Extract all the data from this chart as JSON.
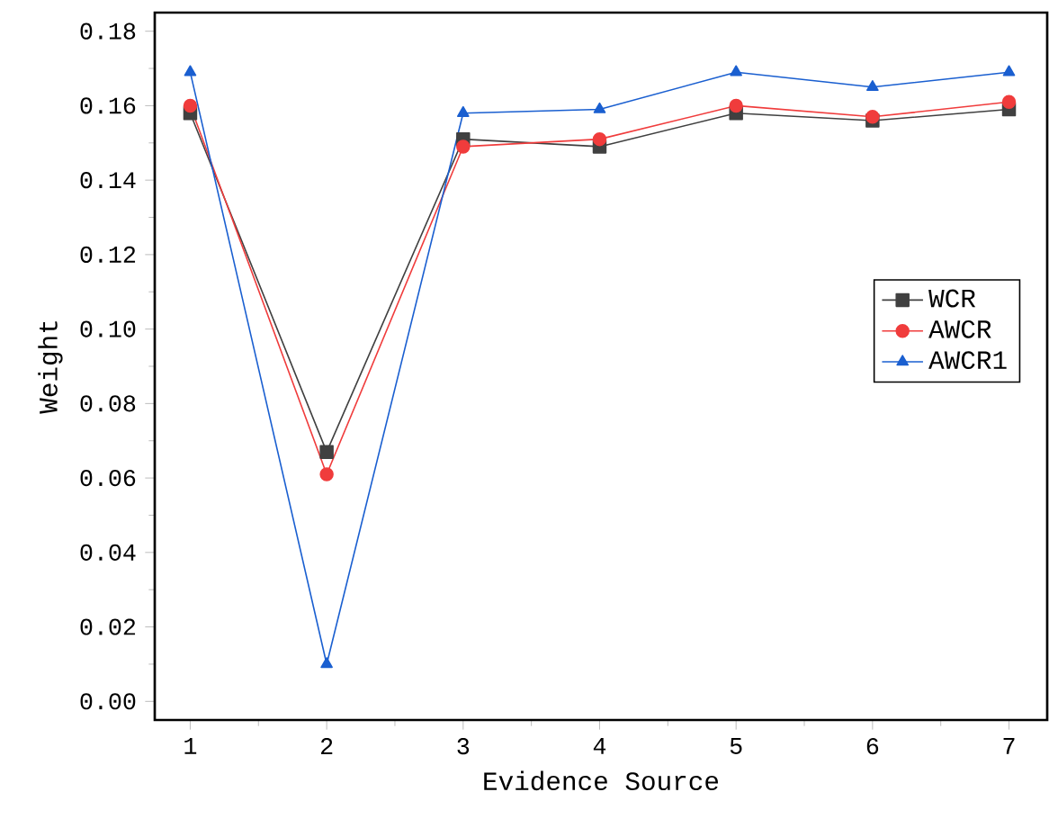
{
  "chart_data": {
    "type": "line",
    "xlabel": "Evidence Source",
    "ylabel": "Weight",
    "x": [
      1,
      2,
      3,
      4,
      5,
      6,
      7
    ],
    "series": [
      {
        "name": "WCR",
        "color": "#404040",
        "marker": "square",
        "values": [
          0.158,
          0.067,
          0.151,
          0.149,
          0.158,
          0.156,
          0.159
        ]
      },
      {
        "name": "AWCR",
        "color": "#f03c3c",
        "marker": "circle",
        "values": [
          0.16,
          0.061,
          0.149,
          0.151,
          0.16,
          0.157,
          0.161
        ]
      },
      {
        "name": "AWCR1",
        "color": "#1a5fd0",
        "marker": "triangle",
        "values": [
          0.169,
          0.01,
          0.158,
          0.159,
          0.169,
          0.165,
          0.169
        ]
      }
    ],
    "xlim": [
      0.74,
      7.28
    ],
    "ylim": [
      -0.005,
      0.185
    ],
    "xticks": [
      1,
      2,
      3,
      4,
      5,
      6,
      7
    ],
    "yticks": [
      {
        "value": 0,
        "label": "0.00"
      },
      {
        "value": 0.02,
        "label": "0.02"
      },
      {
        "value": 0.04,
        "label": "0.04"
      },
      {
        "value": 0.06,
        "label": "0.06"
      },
      {
        "value": 0.08,
        "label": "0.08"
      },
      {
        "value": 0.1,
        "label": "0.10"
      },
      {
        "value": 0.12,
        "label": "0.12"
      },
      {
        "value": 0.14,
        "label": "0.14"
      },
      {
        "value": 0.16,
        "label": "0.16"
      },
      {
        "value": 0.18,
        "label": "0.18"
      }
    ],
    "legend": "right",
    "grid": false,
    "line_style": "solid"
  }
}
